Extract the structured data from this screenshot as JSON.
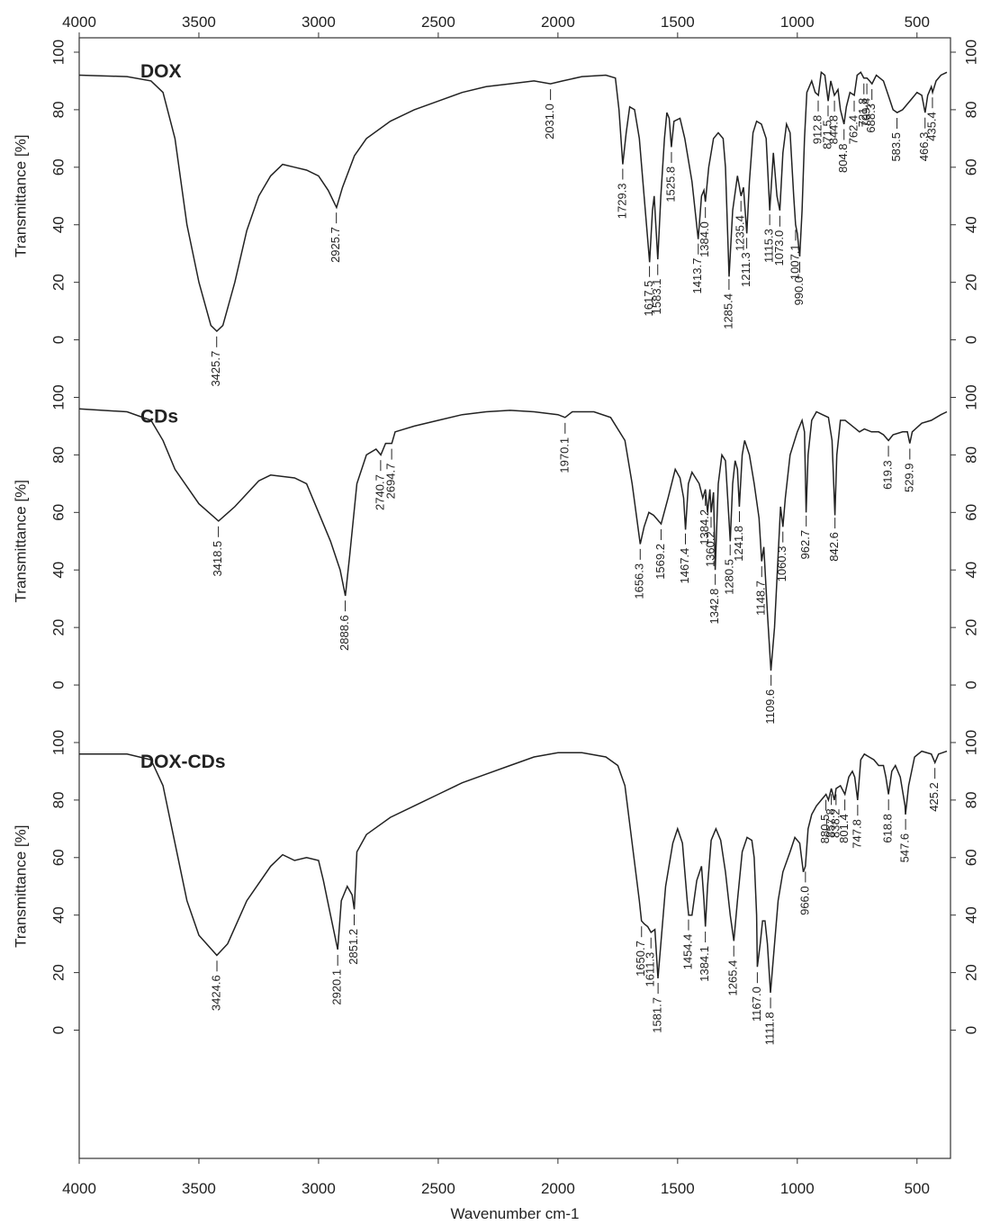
{
  "chart_data": [
    {
      "type": "line",
      "title": "DOX",
      "ylabel": "Transmittance [%]",
      "color": "#222222",
      "xlim": [
        4000,
        360
      ],
      "xticks": [
        4000,
        3500,
        3000,
        2500,
        2000,
        1500,
        1000,
        500
      ],
      "ylim": [
        -15,
        105
      ],
      "yticks": [
        0,
        20,
        40,
        60,
        80,
        100
      ],
      "x": [
        4000,
        3800,
        3700,
        3650,
        3600,
        3550,
        3500,
        3450,
        3425,
        3400,
        3350,
        3300,
        3250,
        3200,
        3150,
        3100,
        3050,
        3000,
        2960,
        2925,
        2900,
        2850,
        2800,
        2700,
        2600,
        2500,
        2400,
        2300,
        2200,
        2100,
        2031,
        1980,
        1900,
        1800,
        1760,
        1745,
        1729,
        1715,
        1700,
        1680,
        1660,
        1640,
        1617,
        1605,
        1598,
        1583,
        1570,
        1555,
        1545,
        1535,
        1526,
        1515,
        1490,
        1470,
        1440,
        1414,
        1400,
        1390,
        1384,
        1370,
        1350,
        1330,
        1310,
        1300,
        1285,
        1270,
        1250,
        1235,
        1225,
        1211,
        1200,
        1185,
        1170,
        1150,
        1130,
        1115,
        1100,
        1085,
        1073,
        1060,
        1045,
        1030,
        1015,
        1007,
        1000,
        990,
        980,
        970,
        960,
        940,
        925,
        912,
        900,
        885,
        871,
        860,
        845,
        830,
        820,
        805,
        795,
        780,
        762,
        750,
        735,
        722,
        709,
        698,
        688,
        670,
        640,
        620,
        600,
        583,
        560,
        520,
        500,
        480,
        466,
        455,
        440,
        435,
        420,
        400,
        375
      ],
      "values": [
        92,
        91.5,
        90,
        86,
        70,
        40,
        20,
        5,
        3,
        5,
        20,
        38,
        50,
        57,
        61,
        60,
        59,
        57,
        52,
        46,
        53,
        64,
        70,
        76,
        80,
        83,
        86,
        88,
        89,
        90,
        89,
        90,
        91.5,
        92,
        91,
        80,
        61,
        72,
        81,
        80,
        70,
        50,
        27,
        45,
        50,
        28,
        50,
        70,
        79,
        77,
        67,
        76,
        77,
        70,
        55,
        35,
        50,
        52,
        48,
        60,
        70,
        72,
        70,
        60,
        22,
        45,
        57,
        50,
        53,
        37,
        55,
        72,
        76,
        75,
        70,
        45,
        65,
        50,
        45,
        65,
        75,
        72,
        50,
        40,
        37,
        29,
        45,
        70,
        86,
        90,
        86,
        85,
        93,
        92,
        83,
        90,
        85,
        87,
        80,
        75,
        81,
        86,
        85,
        92,
        93,
        91,
        91,
        90,
        89,
        92,
        90,
        85,
        80,
        79,
        80,
        84,
        86,
        85,
        79,
        85,
        88,
        86,
        90,
        92,
        93
      ],
      "annotations": [
        {
          "value": 3425.7,
          "label": "3425.7"
        },
        {
          "value": 2925.7,
          "label": "2925.7"
        },
        {
          "value": 2031.0,
          "label": "2031.0"
        },
        {
          "value": 1729.3,
          "label": "1729.3"
        },
        {
          "value": 1617.5,
          "label": "1617.5"
        },
        {
          "value": 1583.1,
          "label": "1583.1"
        },
        {
          "value": 1525.8,
          "label": "1525.8"
        },
        {
          "value": 1413.7,
          "label": "1413.7"
        },
        {
          "value": 1384.0,
          "label": "1384.0"
        },
        {
          "value": 1285.4,
          "label": "1285.4"
        },
        {
          "value": 1235.4,
          "label": "1235.4"
        },
        {
          "value": 1211.3,
          "label": "1211.3"
        },
        {
          "value": 1115.3,
          "label": "1115.3"
        },
        {
          "value": 1073.0,
          "label": "1073.0"
        },
        {
          "value": 1007.1,
          "label": "1007.1"
        },
        {
          "value": 990.0,
          "label": "990.0"
        },
        {
          "value": 912.8,
          "label": "912.8"
        },
        {
          "value": 871.5,
          "label": "871.5"
        },
        {
          "value": 844.8,
          "label": "844.8"
        },
        {
          "value": 804.8,
          "label": "804.8"
        },
        {
          "value": 762.4,
          "label": "762.4"
        },
        {
          "value": 721.8,
          "label": "721.8"
        },
        {
          "value": 709.4,
          "label": "709.4"
        },
        {
          "value": 688.3,
          "label": "688.3"
        },
        {
          "value": 583.5,
          "label": "583.5"
        },
        {
          "value": 466.3,
          "label": "466.3"
        },
        {
          "value": 435.4,
          "label": "435.4"
        }
      ]
    },
    {
      "type": "line",
      "title": "CDs",
      "ylabel": "Transmittance [%]",
      "color": "#222222",
      "xlim": [
        4000,
        360
      ],
      "ylim": [
        -15,
        105
      ],
      "yticks": [
        0,
        20,
        40,
        60,
        80,
        100
      ],
      "x": [
        4000,
        3800,
        3700,
        3650,
        3600,
        3500,
        3418,
        3350,
        3250,
        3200,
        3100,
        3050,
        3000,
        2950,
        2910,
        2888,
        2870,
        2840,
        2800,
        2760,
        2740,
        2720,
        2694,
        2680,
        2600,
        2500,
        2400,
        2300,
        2200,
        2100,
        2000,
        1970,
        1940,
        1850,
        1780,
        1720,
        1690,
        1656,
        1640,
        1620,
        1600,
        1569,
        1540,
        1510,
        1490,
        1475,
        1467,
        1455,
        1440,
        1425,
        1410,
        1395,
        1384,
        1375,
        1365,
        1360,
        1350,
        1343,
        1330,
        1315,
        1300,
        1280,
        1270,
        1260,
        1250,
        1242,
        1230,
        1220,
        1200,
        1180,
        1160,
        1149,
        1140,
        1125,
        1110,
        1095,
        1080,
        1070,
        1060,
        1050,
        1030,
        1000,
        980,
        970,
        963,
        955,
        940,
        920,
        895,
        870,
        855,
        843,
        835,
        820,
        800,
        770,
        740,
        720,
        690,
        660,
        640,
        619,
        600,
        560,
        540,
        530,
        520,
        480,
        440,
        400,
        375
      ],
      "values": [
        96,
        95,
        92,
        85,
        75,
        63,
        57,
        62,
        71,
        73,
        72,
        70,
        60,
        50,
        40,
        31,
        45,
        70,
        80,
        82,
        80,
        84,
        84,
        88,
        90,
        92,
        94,
        95,
        95.5,
        95,
        94,
        93,
        95,
        95,
        93,
        85,
        70,
        49,
        55,
        60,
        59,
        56,
        65,
        75,
        72,
        65,
        54,
        70,
        74,
        72,
        70,
        65,
        68,
        60,
        68,
        60,
        67,
        40,
        70,
        80,
        78,
        50,
        70,
        78,
        75,
        62,
        80,
        85,
        80,
        70,
        58,
        43,
        48,
        25,
        5,
        20,
        45,
        62,
        55,
        65,
        80,
        88,
        92,
        88,
        60,
        80,
        92,
        95,
        94,
        93,
        85,
        59,
        80,
        92,
        92,
        90,
        88,
        89,
        88,
        88,
        87,
        85,
        87,
        88,
        88,
        84,
        88,
        91,
        92,
        94,
        95
      ],
      "annotations": [
        {
          "value": 3418.5,
          "label": "3418.5"
        },
        {
          "value": 2888.6,
          "label": "2888.6"
        },
        {
          "value": 2740.7,
          "label": "2740.7"
        },
        {
          "value": 2694.7,
          "label": "2694.7"
        },
        {
          "value": 1970.1,
          "label": "1970.1"
        },
        {
          "value": 1656.3,
          "label": "1656.3"
        },
        {
          "value": 1569.2,
          "label": "1569.2"
        },
        {
          "value": 1467.4,
          "label": "1467.4"
        },
        {
          "value": 1384.2,
          "label": "1384.2"
        },
        {
          "value": 1360.2,
          "label": "1360.2"
        },
        {
          "value": 1342.8,
          "label": "1342.8"
        },
        {
          "value": 1280.5,
          "label": "1280.5"
        },
        {
          "value": 1241.8,
          "label": "1241.8"
        },
        {
          "value": 1148.7,
          "label": "1148.7"
        },
        {
          "value": 1109.6,
          "label": "1109.6"
        },
        {
          "value": 1060.3,
          "label": "1060.3"
        },
        {
          "value": 962.7,
          "label": "962.7"
        },
        {
          "value": 842.6,
          "label": "842.6"
        },
        {
          "value": 619.3,
          "label": "619.3"
        },
        {
          "value": 529.9,
          "label": "529.9"
        }
      ]
    },
    {
      "type": "line",
      "title": "DOX-CDs",
      "ylabel": "Transmittance [%]",
      "xlabel": "Wavenumber cm-1",
      "color": "#222222",
      "xlim": [
        4000,
        360
      ],
      "xticks": [
        4000,
        3500,
        3000,
        2500,
        2000,
        1500,
        1000,
        500
      ],
      "ylim": [
        -44.6,
        105
      ],
      "yticks": [
        0,
        20,
        40,
        60,
        80,
        100
      ],
      "x": [
        4000,
        3800,
        3700,
        3650,
        3600,
        3550,
        3500,
        3425,
        3380,
        3300,
        3200,
        3150,
        3100,
        3050,
        3000,
        2980,
        2950,
        2920,
        2905,
        2880,
        2860,
        2851,
        2840,
        2800,
        2700,
        2600,
        2500,
        2400,
        2300,
        2200,
        2100,
        2000,
        1900,
        1800,
        1750,
        1720,
        1690,
        1660,
        1651,
        1640,
        1625,
        1611,
        1595,
        1582,
        1570,
        1550,
        1520,
        1500,
        1480,
        1460,
        1454,
        1440,
        1420,
        1400,
        1390,
        1384,
        1375,
        1360,
        1340,
        1320,
        1300,
        1280,
        1265,
        1250,
        1230,
        1210,
        1190,
        1180,
        1170,
        1167,
        1155,
        1145,
        1135,
        1125,
        1112,
        1100,
        1080,
        1060,
        1030,
        1010,
        990,
        975,
        966,
        955,
        940,
        920,
        900,
        880,
        870,
        858,
        845,
        838,
        820,
        801,
        785,
        770,
        760,
        748,
        735,
        720,
        700,
        680,
        660,
        640,
        630,
        619,
        605,
        590,
        570,
        550,
        548,
        535,
        510,
        480,
        440,
        430,
        425,
        410,
        375
      ],
      "values": [
        96,
        96,
        94,
        85,
        65,
        45,
        33,
        26,
        30,
        45,
        57,
        61,
        59,
        60,
        59,
        52,
        40,
        28,
        45,
        50,
        47,
        42,
        62,
        68,
        74,
        78,
        82,
        86,
        89,
        92,
        95,
        96.5,
        96.5,
        95,
        92,
        85,
        65,
        45,
        38,
        37,
        36,
        34,
        35,
        18,
        30,
        50,
        65,
        70,
        65,
        45,
        40,
        40,
        52,
        57,
        45,
        36,
        50,
        66,
        70,
        66,
        55,
        40,
        31,
        45,
        62,
        67,
        66,
        60,
        40,
        22,
        30,
        38,
        38,
        30,
        13,
        25,
        45,
        55,
        62,
        67,
        65,
        55,
        57,
        70,
        75,
        78,
        80,
        82,
        80,
        84,
        80,
        84,
        85,
        82,
        88,
        90,
        88,
        80,
        94,
        96,
        95,
        94,
        92,
        92,
        88,
        82,
        90,
        92,
        88,
        78,
        75,
        85,
        95,
        97,
        96,
        94,
        93,
        96,
        97
      ],
      "annotations": [
        {
          "value": 3424.6,
          "label": "3424.6"
        },
        {
          "value": 2920.1,
          "label": "2920.1"
        },
        {
          "value": 2851.2,
          "label": "2851.2"
        },
        {
          "value": 1650.7,
          "label": "1650.7"
        },
        {
          "value": 1611.3,
          "label": "1611.3"
        },
        {
          "value": 1581.7,
          "label": "1581.7"
        },
        {
          "value": 1454.4,
          "label": "1454.4"
        },
        {
          "value": 1384.1,
          "label": "1384.1"
        },
        {
          "value": 1265.4,
          "label": "1265.4"
        },
        {
          "value": 1167.0,
          "label": "1167.0"
        },
        {
          "value": 1111.8,
          "label": "1111.8"
        },
        {
          "value": 966.0,
          "label": "966.0"
        },
        {
          "value": 880.5,
          "label": "880.5"
        },
        {
          "value": 857.8,
          "label": "857.8"
        },
        {
          "value": 838.2,
          "label": "838.2"
        },
        {
          "value": 801.4,
          "label": "801.4"
        },
        {
          "value": 747.8,
          "label": "747.8"
        },
        {
          "value": 618.8,
          "label": "618.8"
        },
        {
          "value": 547.6,
          "label": "547.6"
        },
        {
          "value": 425.2,
          "label": "425.2"
        }
      ]
    }
  ]
}
